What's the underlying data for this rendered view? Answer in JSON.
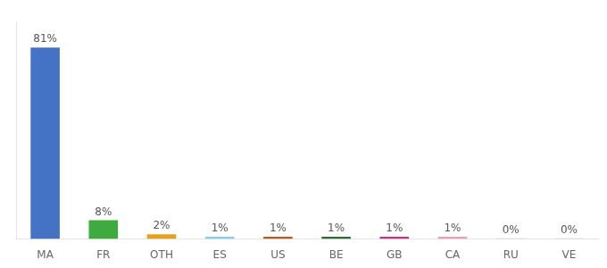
{
  "chart_data": {
    "type": "bar",
    "categories": [
      "MA",
      "FR",
      "OTH",
      "ES",
      "US",
      "BE",
      "GB",
      "CA",
      "RU",
      "VE"
    ],
    "values": [
      81,
      8,
      2,
      1,
      1,
      1,
      1,
      1,
      0.3,
      0.3
    ],
    "value_labels": [
      "81%",
      "8%",
      "2%",
      "1%",
      "1%",
      "1%",
      "1%",
      "1%",
      "0%",
      "0%"
    ],
    "colors": [
      "#4472c4",
      "#3dab3d",
      "#e6a020",
      "#88ccee",
      "#c05a18",
      "#2d6e2d",
      "#cc3388",
      "#e8a0b8",
      "#cccccc",
      "#cccccc"
    ],
    "ylim": [
      0,
      92
    ],
    "data_labels": true,
    "tick_labels": "x",
    "grid": false
  }
}
